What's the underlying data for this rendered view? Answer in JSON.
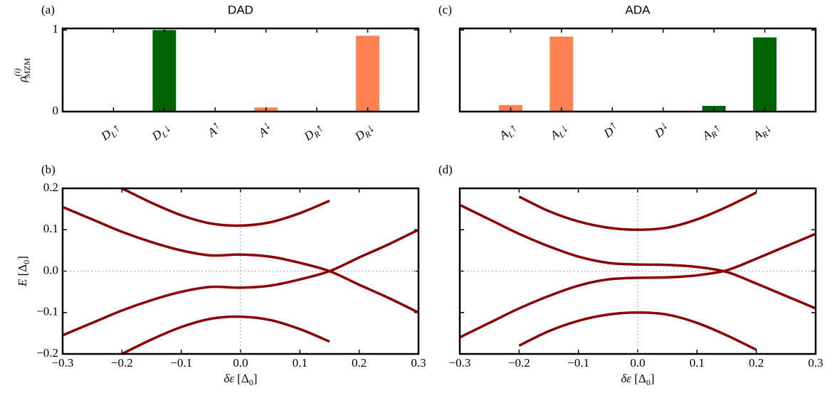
{
  "chart_data": [
    {
      "type": "bar",
      "panel": "(a)",
      "title": "DAD",
      "ylabel": {
        "main": "ρ",
        "sup": "(i)",
        "sub": "MZM"
      },
      "categories": [
        {
          "base": "D",
          "sub": "L",
          "spin": "↑"
        },
        {
          "base": "D",
          "sub": "L",
          "spin": "↓"
        },
        {
          "base": "A",
          "sub": "",
          "spin": "↑"
        },
        {
          "base": "A",
          "sub": "",
          "spin": "↓"
        },
        {
          "base": "D",
          "sub": "R",
          "spin": "↑"
        },
        {
          "base": "D",
          "sub": "R",
          "spin": "↓"
        }
      ],
      "values": [
        0,
        1.0,
        0,
        0.05,
        0,
        0.93
      ],
      "colors": [
        "#006400",
        "#006400",
        "#ff8050",
        "#ff8050",
        "#ff8050",
        "#ff8050"
      ],
      "ylim": [
        0,
        1.02
      ],
      "yticks": [
        0,
        1
      ],
      "ytick_labels": true
    },
    {
      "type": "line",
      "panel": "(b)",
      "xlabel": {
        "main": "δε",
        "open": " [Δ",
        "sub": "0",
        "close": "]"
      },
      "ylabel": {
        "main": "E",
        "open": " [Δ",
        "sub": "0",
        "close": "]"
      },
      "x": [
        -0.3,
        -0.25,
        -0.2,
        -0.15,
        -0.1,
        -0.05,
        0,
        0.05,
        0.1,
        0.15,
        0.2,
        0.25,
        0.3
      ],
      "series": [
        {
          "color": "#8b0000",
          "values": [
            null,
            null,
            0.2,
            0.165,
            0.135,
            0.115,
            0.11,
            0.118,
            0.14,
            0.17,
            null,
            null,
            null
          ]
        },
        {
          "color": "#8b0000",
          "values": [
            0.155,
            0.125,
            0.095,
            0.07,
            0.05,
            0.038,
            0.04,
            0.035,
            0.02,
            0.0,
            -0.033,
            -0.065,
            -0.1
          ]
        },
        {
          "color": "#8b0000",
          "values": [
            -0.155,
            -0.125,
            -0.095,
            -0.07,
            -0.05,
            -0.038,
            -0.04,
            -0.035,
            -0.02,
            0.0,
            0.033,
            0.065,
            0.1
          ]
        },
        {
          "color": "#8b0000",
          "values": [
            null,
            null,
            -0.2,
            -0.165,
            -0.135,
            -0.115,
            -0.11,
            -0.118,
            -0.14,
            -0.17,
            null,
            null,
            null
          ]
        }
      ],
      "reflines": {
        "x": 0,
        "y": 0
      },
      "xlim": [
        -0.3,
        0.3
      ],
      "ylim": [
        -0.2,
        0.2
      ],
      "xticks": [
        {
          "value": -0.3,
          "label": "−0.3"
        },
        {
          "value": -0.2,
          "label": "−0.2"
        },
        {
          "value": -0.1,
          "label": "−0.1"
        },
        {
          "value": 0,
          "label": "0.0"
        },
        {
          "value": 0.1,
          "label": "0.1"
        },
        {
          "value": 0.2,
          "label": "0.2"
        },
        {
          "value": 0.3,
          "label": "0.3"
        }
      ],
      "yticks": [
        {
          "value": -0.2,
          "label": "−0.2"
        },
        {
          "value": -0.1,
          "label": "−0.1"
        },
        {
          "value": 0,
          "label": "0.0"
        },
        {
          "value": 0.1,
          "label": "0.1"
        },
        {
          "value": 0.2,
          "label": "0.2"
        }
      ],
      "ytick_labels": true
    },
    {
      "type": "bar",
      "panel": "(c)",
      "title": "ADA",
      "categories": [
        {
          "base": "A",
          "sub": "L",
          "spin": "↑"
        },
        {
          "base": "A",
          "sub": "L",
          "spin": "↓"
        },
        {
          "base": "D",
          "sub": "",
          "spin": "↑"
        },
        {
          "base": "D",
          "sub": "",
          "spin": "↓"
        },
        {
          "base": "A",
          "sub": "R",
          "spin": "↑"
        },
        {
          "base": "A",
          "sub": "R",
          "spin": "↓"
        }
      ],
      "values": [
        0.08,
        0.92,
        0,
        0,
        0.07,
        0.91
      ],
      "colors": [
        "#ff8050",
        "#ff8050",
        "#ff8050",
        "#ff8050",
        "#006400",
        "#006400"
      ],
      "ylim": [
        0,
        1.02
      ],
      "yticks": [
        0,
        1
      ],
      "ytick_labels": false
    },
    {
      "type": "line",
      "panel": "(d)",
      "xlabel": {
        "main": "δε",
        "open": " [Δ",
        "sub": "0",
        "close": "]"
      },
      "x": [
        -0.3,
        -0.25,
        -0.2,
        -0.15,
        -0.1,
        -0.05,
        0,
        0.05,
        0.1,
        0.15,
        0.2,
        0.25,
        0.3
      ],
      "series": [
        {
          "color": "#8b0000",
          "values": [
            null,
            null,
            0.18,
            0.145,
            0.12,
            0.105,
            0.1,
            0.105,
            0.125,
            0.155,
            0.19,
            null,
            null
          ]
        },
        {
          "color": "#8b0000",
          "values": [
            0.16,
            0.125,
            0.09,
            0.06,
            0.035,
            0.02,
            0.016,
            0.015,
            0.01,
            -0.002,
            -0.03,
            -0.06,
            -0.09
          ]
        },
        {
          "color": "#8b0000",
          "values": [
            -0.16,
            -0.125,
            -0.09,
            -0.06,
            -0.035,
            -0.02,
            -0.016,
            -0.015,
            -0.01,
            0.002,
            0.03,
            0.06,
            0.09
          ]
        },
        {
          "color": "#8b0000",
          "values": [
            null,
            null,
            -0.18,
            -0.145,
            -0.12,
            -0.105,
            -0.1,
            -0.105,
            -0.125,
            -0.155,
            -0.19,
            null,
            null
          ]
        }
      ],
      "reflines": {
        "x": 0,
        "y": 0
      },
      "xlim": [
        -0.3,
        0.3
      ],
      "ylim": [
        -0.2,
        0.2
      ],
      "xticks": [
        {
          "value": -0.3,
          "label": "−0.3"
        },
        {
          "value": -0.2,
          "label": "−0.2"
        },
        {
          "value": -0.1,
          "label": "−0.1"
        },
        {
          "value": 0,
          "label": "0.0"
        },
        {
          "value": 0.1,
          "label": "0.1"
        },
        {
          "value": 0.2,
          "label": "0.2"
        },
        {
          "value": 0.3,
          "label": "0.3"
        }
      ],
      "yticks": [
        {
          "value": -0.2,
          "label": "−0.2"
        },
        {
          "value": -0.1,
          "label": "−0.1"
        },
        {
          "value": 0,
          "label": "0.0"
        },
        {
          "value": 0.1,
          "label": "0.1"
        },
        {
          "value": 0.2,
          "label": "0.2"
        }
      ],
      "ytick_labels": false
    }
  ]
}
